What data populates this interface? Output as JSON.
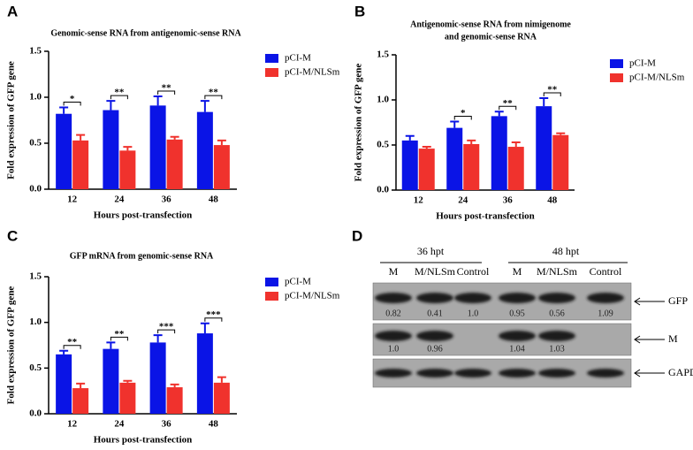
{
  "chart_data": [
    {
      "type": "bar",
      "panel_label": "A",
      "title": [
        "Genomic-sense RNA from antigenomic-sense RNA"
      ],
      "xlabel": "Hours post-transfection",
      "ylabel": "Fold expression of GFP gene",
      "categories": [
        "12",
        "24",
        "36",
        "48"
      ],
      "series": [
        {
          "name": "pCI-M",
          "color": "#0a14e6",
          "values": [
            0.82,
            0.86,
            0.91,
            0.84
          ],
          "errors": [
            0.07,
            0.1,
            0.1,
            0.12
          ]
        },
        {
          "name": "pCI-M/NLSm",
          "color": "#f0322d",
          "values": [
            0.53,
            0.42,
            0.54,
            0.48
          ],
          "errors": [
            0.06,
            0.04,
            0.03,
            0.05
          ]
        }
      ],
      "significance": [
        "*",
        "**",
        "**",
        "**"
      ],
      "ylim": [
        0,
        1.5
      ],
      "yticks": [
        {
          "value": 0,
          "label": "0.0"
        },
        {
          "value": 0.5,
          "label": "0.5"
        },
        {
          "value": 1,
          "label": "1.0"
        },
        {
          "value": 1.5,
          "label": "1.5"
        }
      ]
    },
    {
      "type": "bar",
      "panel_label": "B",
      "title": [
        "Antigenomic-sense RNA from nimigenome",
        "and genomic-sense RNA"
      ],
      "xlabel": "Hours post-transfection",
      "ylabel": "Fold expression of GFP gene",
      "categories": [
        "12",
        "24",
        "36",
        "48"
      ],
      "series": [
        {
          "name": "pCI-M",
          "color": "#0a14e6",
          "values": [
            0.55,
            0.69,
            0.82,
            0.93
          ],
          "errors": [
            0.05,
            0.07,
            0.05,
            0.09
          ]
        },
        {
          "name": "pCI-M/NLSm",
          "color": "#f0322d",
          "values": [
            0.46,
            0.51,
            0.48,
            0.61
          ],
          "errors": [
            0.02,
            0.04,
            0.05,
            0.02
          ]
        }
      ],
      "significance": [
        null,
        "*",
        "**",
        "**"
      ],
      "ylim": [
        0,
        1.5
      ],
      "yticks": [
        {
          "value": 0,
          "label": "0.0"
        },
        {
          "value": 0.5,
          "label": "0.5"
        },
        {
          "value": 1,
          "label": "1.0"
        },
        {
          "value": 1.5,
          "label": "1.5"
        }
      ]
    },
    {
      "type": "bar",
      "panel_label": "C",
      "title": [
        "GFP mRNA from genomic-sense RNA"
      ],
      "xlabel": "Hours post-transfection",
      "ylabel": "Fold expression of GFP gene",
      "categories": [
        "12",
        "24",
        "36",
        "48"
      ],
      "series": [
        {
          "name": "pCI-M",
          "color": "#0a14e6",
          "values": [
            0.65,
            0.71,
            0.78,
            0.88
          ],
          "errors": [
            0.04,
            0.07,
            0.08,
            0.11
          ]
        },
        {
          "name": "pCI-M/NLSm",
          "color": "#f0322d",
          "values": [
            0.28,
            0.34,
            0.29,
            0.34
          ],
          "errors": [
            0.05,
            0.02,
            0.03,
            0.06
          ]
        }
      ],
      "significance": [
        "**",
        "**",
        "***",
        "***"
      ],
      "ylim": [
        0,
        1.5
      ],
      "yticks": [
        {
          "value": 0,
          "label": "0.0"
        },
        {
          "value": 0.5,
          "label": "0.5"
        },
        {
          "value": 1,
          "label": "1.0"
        },
        {
          "value": 1.5,
          "label": "1.5"
        }
      ]
    }
  ],
  "blot": {
    "panel_label": "D",
    "groups": [
      "36 hpt",
      "48 hpt"
    ],
    "lanes": [
      "M",
      "M/NLSm",
      "Control",
      "M",
      "M/NLSm",
      "Control"
    ],
    "rows": [
      {
        "label": "GFP",
        "quantities": [
          "0.82",
          "0.41",
          "1.0",
          "0.95",
          "0.56",
          "1.09"
        ]
      },
      {
        "label": "M",
        "quantities": [
          "1.0",
          "0.96",
          null,
          "1.04",
          "1.03",
          null
        ]
      },
      {
        "label": "GAPDH",
        "quantities": null
      }
    ]
  }
}
